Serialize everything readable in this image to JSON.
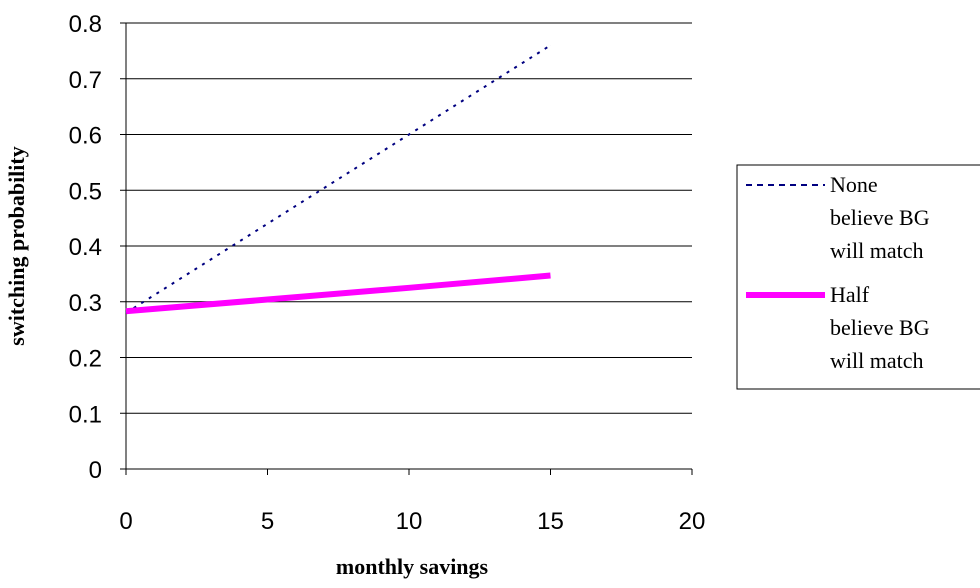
{
  "chart_data": {
    "type": "line",
    "title": "",
    "xlabel": "monthly savings",
    "ylabel": "switching probability",
    "xlim": [
      0,
      20
    ],
    "ylim": [
      0,
      0.8
    ],
    "xticks": [
      0,
      5,
      10,
      15,
      20
    ],
    "yticks": [
      0,
      0.1,
      0.2,
      0.3,
      0.4,
      0.5,
      0.6,
      0.7,
      0.8
    ],
    "xtick_labels": [
      "0",
      "5",
      "10",
      "15",
      "20"
    ],
    "ytick_labels": [
      "0",
      "0.1",
      "0.2",
      "0.3",
      "0.4",
      "0.5",
      "0.6",
      "0.7",
      "0.8"
    ],
    "grid": "horizontal",
    "legend_position": "right",
    "series": [
      {
        "name": "None believe BG will match",
        "legend_lines": [
          "None",
          "believe BG",
          "will match"
        ],
        "color": "#000080",
        "style": "dotted",
        "x": [
          0,
          5,
          10,
          15
        ],
        "y": [
          0.28,
          0.44,
          0.6,
          0.76
        ]
      },
      {
        "name": "Half believe BG will match",
        "legend_lines": [
          "Half",
          "believe BG",
          "will match"
        ],
        "color": "#ff00ff",
        "style": "solid-thick",
        "x": [
          0,
          5,
          10,
          15
        ],
        "y": [
          0.283,
          0.304,
          0.325,
          0.347
        ]
      }
    ]
  }
}
